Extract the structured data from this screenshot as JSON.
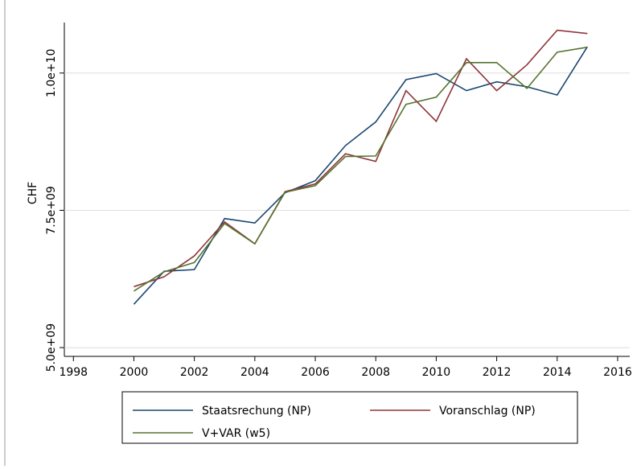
{
  "chart_data": {
    "type": "line",
    "x": [
      2000,
      2001,
      2002,
      2003,
      2004,
      2005,
      2006,
      2007,
      2008,
      2009,
      2010,
      2011,
      2012,
      2013,
      2014,
      2015
    ],
    "y_label": "CHF",
    "series": [
      {
        "name": "Staatsrechung (NP)",
        "color": "#1a476f",
        "values": [
          5790000000,
          6390000000,
          6420000000,
          7350000000,
          7270000000,
          7820000000,
          8040000000,
          8680000000,
          9110000000,
          9880000000,
          9990000000,
          9680000000,
          9840000000,
          9750000000,
          9600000000,
          10480000000
        ]
      },
      {
        "name": "Voranschlag (NP)",
        "color": "#90353b",
        "values": [
          6110000000,
          6290000000,
          6670000000,
          7290000000,
          6890000000,
          7840000000,
          7980000000,
          8530000000,
          8390000000,
          9680000000,
          9120000000,
          10260000000,
          9680000000,
          10150000000,
          10780000000,
          10720000000
        ]
      },
      {
        "name": "V+VAR (w5)",
        "color": "#55752f",
        "values": [
          6030000000,
          6380000000,
          6550000000,
          7260000000,
          6890000000,
          7830000000,
          7950000000,
          8480000000,
          8490000000,
          9430000000,
          9560000000,
          10190000000,
          10190000000,
          9720000000,
          10380000000,
          10470000000
        ]
      }
    ],
    "xlim": [
      1997.7,
      2016.4
    ],
    "xticks": [
      1998,
      2000,
      2002,
      2004,
      2006,
      2008,
      2010,
      2012,
      2014,
      2016
    ],
    "ylim": [
      4840000000,
      10920000000
    ],
    "yticks": [
      {
        "value": 5000000000,
        "label": "5.0e+09"
      },
      {
        "value": 7500000000,
        "label": "7.5e+09"
      },
      {
        "value": 10000000000,
        "label": "1.0e+10"
      }
    ],
    "grid": true
  }
}
